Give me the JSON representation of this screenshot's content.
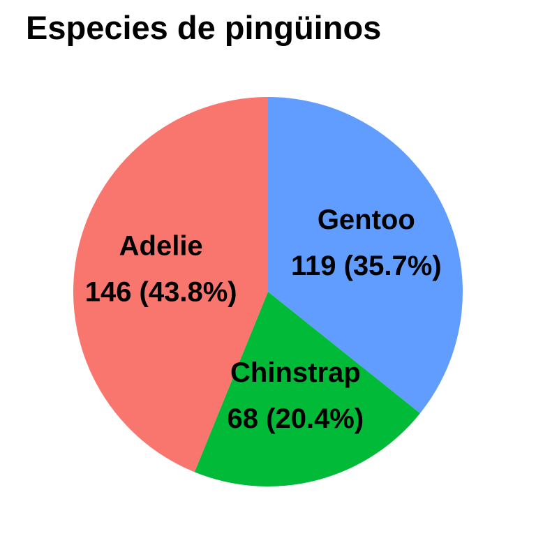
{
  "chart_data": {
    "type": "pie",
    "title": "Especies de pingüinos",
    "slices": [
      {
        "label": "Gentoo",
        "value": 119,
        "value_label": "119 (35.7%)",
        "color": "#619CFF"
      },
      {
        "label": "Chinstrap",
        "value": 68,
        "value_label": "68 (20.4%)",
        "color": "#00BA38"
      },
      {
        "label": "Adelie",
        "value": 146,
        "value_label": "146 (43.8%)",
        "color": "#F8766D"
      }
    ]
  }
}
